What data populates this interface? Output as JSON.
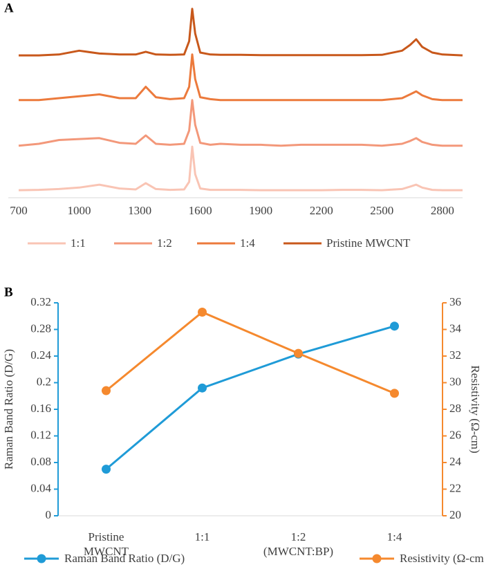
{
  "chart_data": [
    {
      "type": "line",
      "panel": "A",
      "x": [
        700,
        800,
        900,
        1000,
        1100,
        1200,
        1280,
        1330,
        1380,
        1450,
        1520,
        1545,
        1560,
        1575,
        1600,
        1650,
        1700,
        1800,
        1900,
        2000,
        2100,
        2200,
        2300,
        2400,
        2500,
        2600,
        2640,
        2670,
        2700,
        2750,
        2800,
        2900
      ],
      "xlim": [
        700,
        2900
      ],
      "xticks": [
        700,
        1000,
        1300,
        1600,
        1900,
        2200,
        2500,
        2800
      ],
      "ylim": [
        0,
        100
      ],
      "legend": "bottom",
      "series": [
        {
          "name": "1:1",
          "color": "#f9c4b4",
          "values": [
            3.6,
            3.8,
            4.2,
            5,
            6.5,
            4.5,
            4,
            7.3,
            4.2,
            3.8,
            4,
            8,
            26.5,
            12,
            4.5,
            3.8,
            3.8,
            3.8,
            3.6,
            3.6,
            3.6,
            3.6,
            3.8,
            3.8,
            3.6,
            4.2,
            5.5,
            6.5,
            5,
            3.8,
            3.6,
            3.6
          ]
        },
        {
          "name": "1:2",
          "color": "#f3987a",
          "values": [
            27,
            28,
            30,
            30.5,
            31,
            28.5,
            28,
            32.4,
            28,
            27.5,
            28,
            35,
            51,
            38,
            28.5,
            27.5,
            28,
            27.5,
            27.5,
            27,
            27.5,
            27.5,
            27.5,
            27.5,
            27,
            28,
            29.5,
            31,
            29,
            27.5,
            27,
            27
          ]
        },
        {
          "name": "1:4",
          "color": "#ec7a3c",
          "values": [
            51,
            51,
            52,
            53,
            54,
            52,
            52,
            58,
            52.5,
            51.5,
            52,
            58,
            75,
            62,
            52.5,
            51.5,
            51,
            51,
            51,
            51,
            51,
            51,
            51,
            51,
            51,
            52,
            54,
            55.6,
            53.5,
            51.5,
            51,
            51
          ]
        },
        {
          "name": "Pristine MWCNT",
          "color": "#c8581b",
          "values": [
            74.5,
            74.5,
            75,
            77,
            75.5,
            75,
            75,
            76.4,
            75,
            74.8,
            75,
            82,
            99,
            86,
            76,
            75,
            74.8,
            74.8,
            74.6,
            74.6,
            74.6,
            74.6,
            74.6,
            74.6,
            74.8,
            77,
            80,
            83,
            79,
            76,
            75,
            74.5
          ]
        }
      ]
    },
    {
      "type": "line",
      "panel": "B",
      "categories": [
        "Pristine MWCNT",
        "1:1",
        "1:2",
        "1:4"
      ],
      "x_label": "(MWCNT:BP)",
      "y_label": "Raman Band Ratio (D/G)",
      "y2_label": "Resistivity  (Ω-cm)",
      "ylim": [
        0,
        0.32
      ],
      "yticks": [
        0,
        0.04,
        0.08,
        0.12,
        0.16,
        0.2,
        0.24,
        0.28,
        0.32
      ],
      "y2lim": [
        20,
        36
      ],
      "y2ticks": [
        20,
        22,
        24,
        26,
        28,
        30,
        32,
        34,
        36
      ],
      "legend": "bottom",
      "series": [
        {
          "name": "Raman Band Ratio (D/G)",
          "color": "#1f9bd7",
          "values": [
            0.07,
            0.192,
            0.243,
            0.285
          ]
        },
        {
          "name": "Resistivity  (Ω-cm)",
          "color": "#f5892e",
          "axis": "y2",
          "values": [
            29.4,
            35.3,
            32.2,
            29.2
          ]
        }
      ]
    }
  ]
}
